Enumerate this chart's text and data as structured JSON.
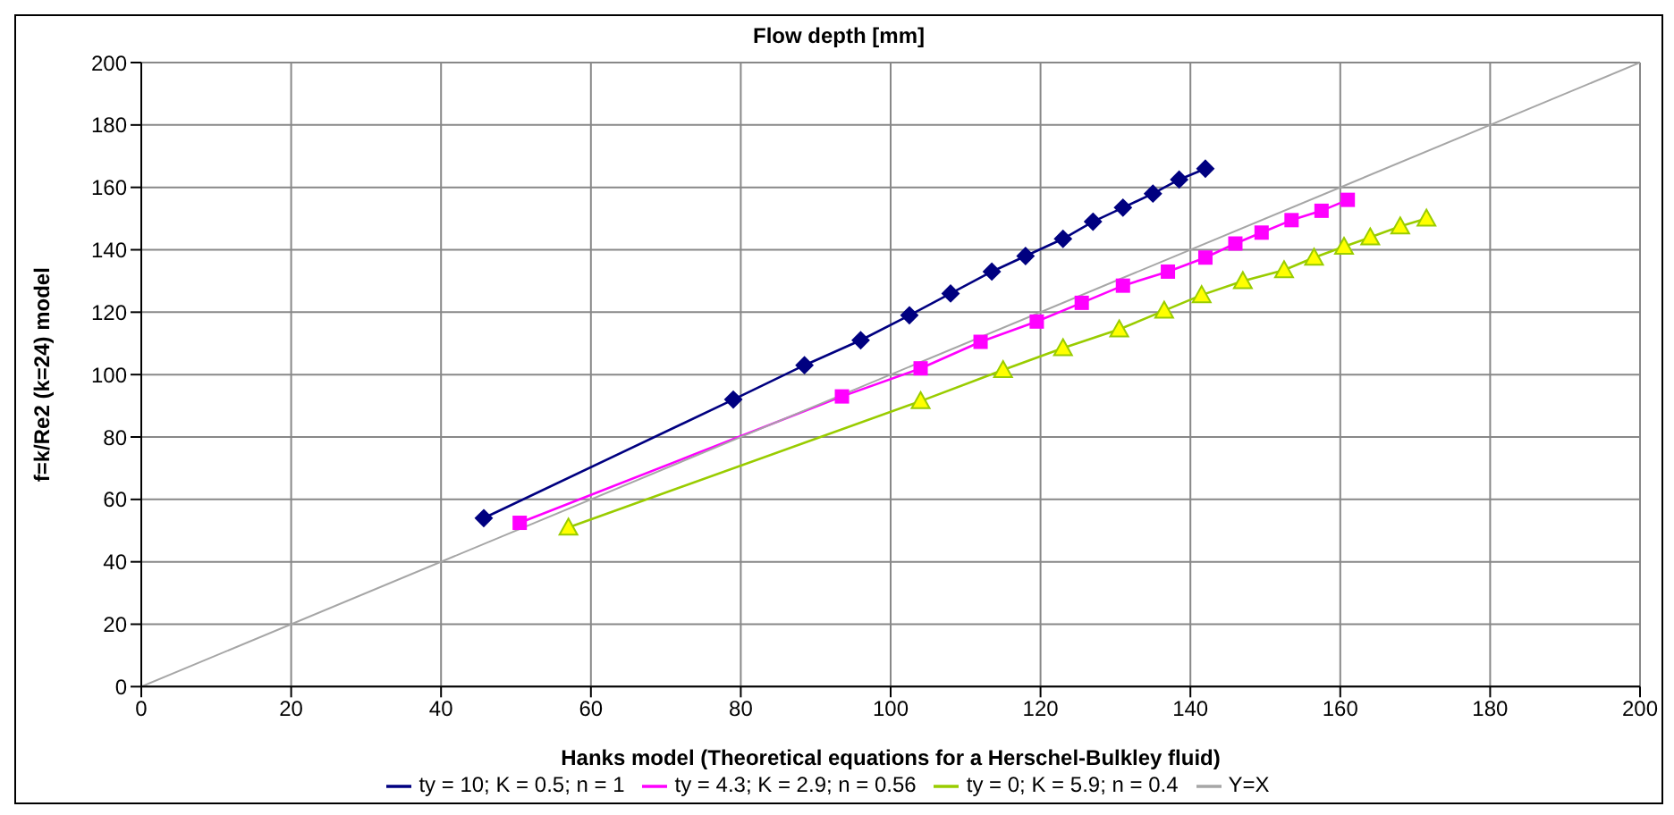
{
  "chart_data": {
    "type": "line",
    "title": "Flow depth [mm]",
    "xlabel": "Hanks model (Theoretical equations for a Herschel-Bulkley fluid)",
    "ylabel": "f=k/Re2 (k=24) model",
    "xlim": [
      0,
      200
    ],
    "xticks": [
      0,
      20,
      40,
      60,
      80,
      100,
      120,
      140,
      160,
      180,
      200
    ],
    "ylim": [
      0,
      200
    ],
    "yticks": [
      0,
      20,
      40,
      60,
      80,
      100,
      120,
      140,
      160,
      180,
      200
    ],
    "grid": true,
    "legend": "bottom",
    "series": [
      {
        "name": "ty = 10; K = 0.5; n = 1",
        "color": "#000080",
        "marker": "diamond",
        "x": [
          45.7,
          79,
          88.5,
          96,
          102.5,
          108,
          113.5,
          118,
          123,
          127,
          131,
          135,
          138.5,
          142
        ],
        "values": [
          54,
          92,
          103,
          111,
          119,
          126,
          133,
          138,
          143.5,
          149,
          153.5,
          158,
          162.5,
          166
        ]
      },
      {
        "name": "ty = 4.3; K = 2.9; n = 0.56",
        "color": "#ff00ff",
        "marker": "square",
        "x": [
          50.5,
          93.5,
          104,
          112,
          119.5,
          125.5,
          131,
          137,
          142,
          146,
          149.5,
          153.5,
          157.5,
          161
        ],
        "values": [
          52.5,
          93,
          102,
          110.5,
          117,
          123,
          128.5,
          133,
          137.5,
          142,
          145.5,
          149.5,
          152.5,
          156
        ]
      },
      {
        "name": "ty = 0; K = 5.9; n = 0.4",
        "color": "#99cc00",
        "marker": "triangle",
        "x": [
          57,
          104,
          115,
          123,
          130.5,
          136.5,
          141.5,
          147,
          152.5,
          156.5,
          160.5,
          164,
          168,
          171.5
        ],
        "values": [
          51,
          91.5,
          101.5,
          108.5,
          114.5,
          120.5,
          125.5,
          130,
          133.5,
          137.5,
          141,
          144,
          147.5,
          150
        ]
      },
      {
        "name": "Y=X",
        "color": "#a6a6a6",
        "marker": "none",
        "x": [
          0,
          200
        ],
        "values": [
          0,
          200
        ]
      }
    ]
  }
}
